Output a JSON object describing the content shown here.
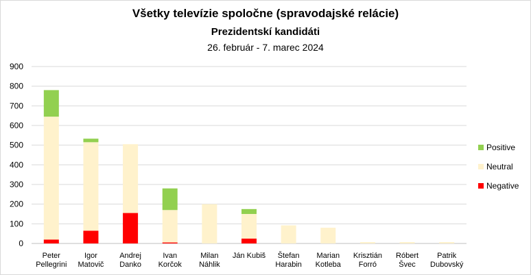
{
  "chart_data": {
    "type": "bar",
    "stacked": true,
    "title": "Všetky televízie spoločne (spravodajské relácie)",
    "subtitle": "Prezidentskí kandidáti",
    "date_range": "26. február - 7. marec 2024",
    "categories": [
      [
        "Peter",
        "Pellegrini"
      ],
      [
        "Igor",
        "Matovič"
      ],
      [
        "Andrej",
        "Danko"
      ],
      [
        "Ivan",
        "Korčok"
      ],
      [
        "Milan",
        "Náhlik"
      ],
      [
        "Ján Kubiš"
      ],
      [
        "Štefan",
        "Harabin"
      ],
      [
        "Marian",
        "Kotleba"
      ],
      [
        "Krisztián",
        "Forró"
      ],
      [
        "Róbert",
        "Švec"
      ],
      [
        "Patrik",
        "Dubovský"
      ]
    ],
    "series": [
      {
        "name": "Negative",
        "color": "#ff0000",
        "values": [
          20,
          65,
          155,
          5,
          0,
          25,
          0,
          0,
          0,
          0,
          0
        ]
      },
      {
        "name": "Neutral",
        "color": "#fff2cc",
        "values": [
          625,
          450,
          350,
          165,
          200,
          125,
          92,
          80,
          7,
          7,
          7
        ]
      },
      {
        "name": "Positive",
        "color": "#92d050",
        "values": [
          135,
          18,
          0,
          110,
          0,
          25,
          0,
          0,
          0,
          0,
          0
        ]
      }
    ],
    "legend_order": [
      "Positive",
      "Neutral",
      "Negative"
    ],
    "ylim": [
      0,
      900
    ],
    "yticks": [
      0,
      100,
      200,
      300,
      400,
      500,
      600,
      700,
      800,
      900
    ],
    "grid": "horizontal",
    "legend_position": "right"
  }
}
